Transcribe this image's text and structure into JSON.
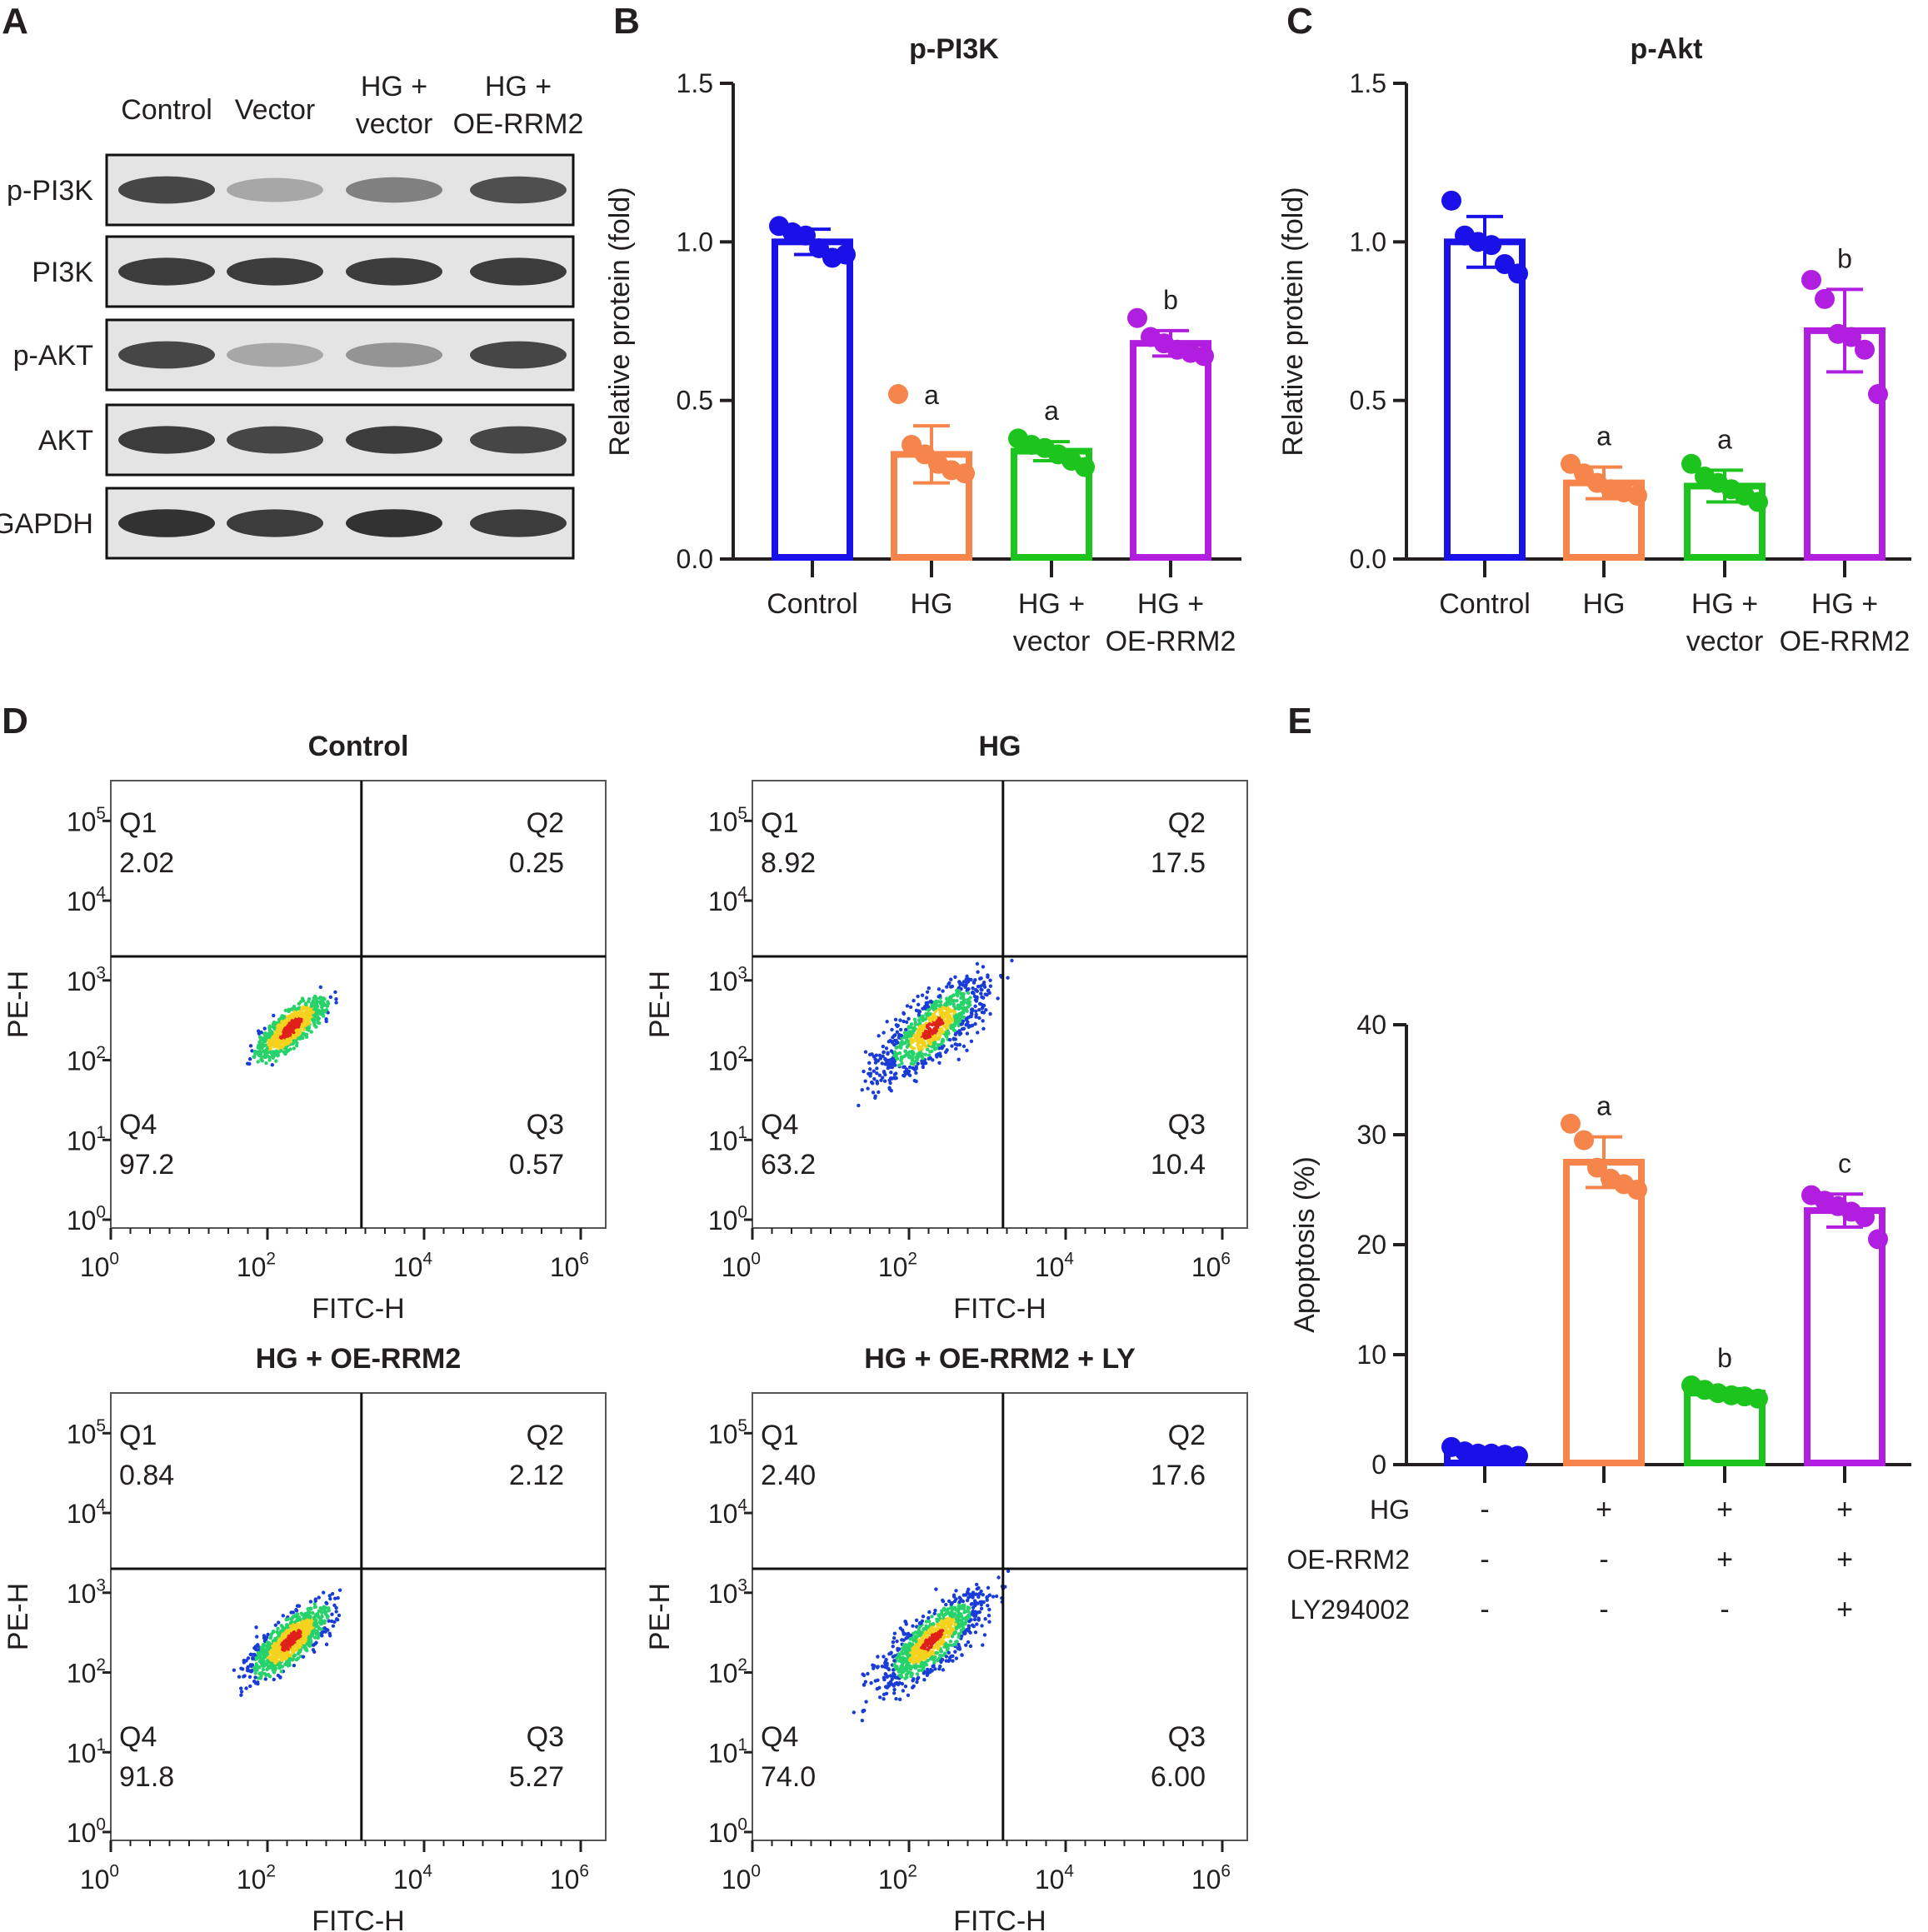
{
  "panel_letters": [
    "A",
    "B",
    "C",
    "D",
    "E"
  ],
  "western_blot": {
    "lanes": [
      "Control",
      "Vector",
      "HG + vector",
      "HG + OE-RRM2"
    ],
    "rows": [
      {
        "label": "p-PI3K",
        "intensity": [
          0.85,
          0.35,
          0.55,
          0.8
        ]
      },
      {
        "label": "PI3K",
        "intensity": [
          0.9,
          0.9,
          0.9,
          0.9
        ]
      },
      {
        "label": "p-AKT",
        "intensity": [
          0.85,
          0.35,
          0.45,
          0.85
        ]
      },
      {
        "label": "AKT",
        "intensity": [
          0.9,
          0.85,
          0.9,
          0.85
        ]
      },
      {
        "label": "GAPDH",
        "intensity": [
          0.95,
          0.9,
          0.95,
          0.9
        ]
      }
    ]
  },
  "colors": {
    "control": "#1a10e8",
    "hg": "#f5854a",
    "vector": "#1ec41e",
    "oe": "#b21ee0"
  },
  "chart_data": [
    {
      "panel": "B",
      "type": "bar",
      "title": "p-PI3K",
      "ylabel": "Relative protein (fold)",
      "ylim": [
        0,
        1.5
      ],
      "yticks": [
        "0.0",
        "0.5",
        "1.0",
        "1.5"
      ],
      "categories": [
        "Control",
        "HG",
        "HG + vector",
        "HG + OE-RRM2"
      ],
      "values": [
        1.0,
        0.33,
        0.34,
        0.68
      ],
      "sd": [
        0.04,
        0.09,
        0.03,
        0.04
      ],
      "points": [
        [
          1.05,
          1.03,
          1.02,
          0.98,
          0.95,
          0.96
        ],
        [
          0.52,
          0.36,
          0.33,
          0.3,
          0.28,
          0.27
        ],
        [
          0.38,
          0.36,
          0.35,
          0.33,
          0.31,
          0.29
        ],
        [
          0.76,
          0.7,
          0.68,
          0.66,
          0.65,
          0.64
        ]
      ],
      "sig": [
        "",
        "a",
        "a",
        "b"
      ]
    },
    {
      "panel": "C",
      "type": "bar",
      "title": "p-Akt",
      "ylabel": "Relative protein (fold)",
      "ylim": [
        0,
        1.5
      ],
      "yticks": [
        "0.0",
        "0.5",
        "1.0",
        "1.5"
      ],
      "categories": [
        "Control",
        "HG",
        "HG + vector",
        "HG + OE-RRM2"
      ],
      "values": [
        1.0,
        0.24,
        0.23,
        0.72
      ],
      "sd": [
        0.08,
        0.05,
        0.05,
        0.13
      ],
      "points": [
        [
          1.13,
          1.02,
          1.0,
          0.99,
          0.93,
          0.9
        ],
        [
          0.3,
          0.27,
          0.24,
          0.22,
          0.21,
          0.2
        ],
        [
          0.3,
          0.26,
          0.24,
          0.22,
          0.2,
          0.18
        ],
        [
          0.88,
          0.82,
          0.71,
          0.7,
          0.66,
          0.52
        ]
      ],
      "sig": [
        "",
        "a",
        "a",
        "b"
      ]
    },
    {
      "panel": "E",
      "type": "bar",
      "title": "",
      "ylabel": "Apoptosis (%)",
      "ylim": [
        0,
        40
      ],
      "yticks": [
        "0",
        "10",
        "20",
        "30",
        "40"
      ],
      "categories": [
        "",
        "",
        "",
        ""
      ],
      "values": [
        1.1,
        27.5,
        6.5,
        23.1
      ],
      "sd": [
        0.3,
        2.3,
        0.4,
        1.5
      ],
      "points": [
        [
          1.6,
          1.2,
          1.0,
          1.0,
          0.9,
          0.8
        ],
        [
          31.0,
          29.5,
          27.0,
          26.0,
          25.5,
          25.0
        ],
        [
          7.2,
          6.8,
          6.5,
          6.3,
          6.2,
          6.0
        ],
        [
          24.5,
          24.0,
          23.5,
          23.0,
          22.5,
          20.5
        ]
      ],
      "sig": [
        "",
        "a",
        "b",
        "c"
      ],
      "treatment_table": {
        "rows": [
          {
            "label": "HG",
            "values": [
              "-",
              "+",
              "+",
              "+"
            ]
          },
          {
            "label": "OE-RRM2",
            "values": [
              "-",
              "-",
              "+",
              "+"
            ]
          },
          {
            "label": "LY294002",
            "values": [
              "-",
              "-",
              "-",
              "+"
            ]
          }
        ]
      }
    }
  ],
  "flow_plots": [
    {
      "title": "Control",
      "q1": "2.02",
      "q2": "0.25",
      "q3": "0.57",
      "q4": "97.2",
      "spread": 0.55
    },
    {
      "title": "HG",
      "q1": "8.92",
      "q2": "17.5",
      "q3": "10.4",
      "q4": "63.2",
      "spread": 1.0
    },
    {
      "title": "HG + OE-RRM2",
      "q1": "0.84",
      "q2": "2.12",
      "q3": "5.27",
      "q4": "91.8",
      "spread": 0.7
    },
    {
      "title": "HG + OE-RRM2 + LY",
      "q1": "2.40",
      "q2": "17.6",
      "q3": "6.00",
      "q4": "74.0",
      "spread": 0.95
    }
  ],
  "flow_labels": {
    "quadrants": [
      "Q1",
      "Q2",
      "Q3",
      "Q4"
    ],
    "xlabel": "FITC-H",
    "ylabel": "PE-H",
    "xticks": [
      "0",
      "2",
      "4",
      "6"
    ],
    "yticks": [
      "0",
      "1",
      "2",
      "3",
      "4",
      "5"
    ],
    "tick_base": "10"
  }
}
